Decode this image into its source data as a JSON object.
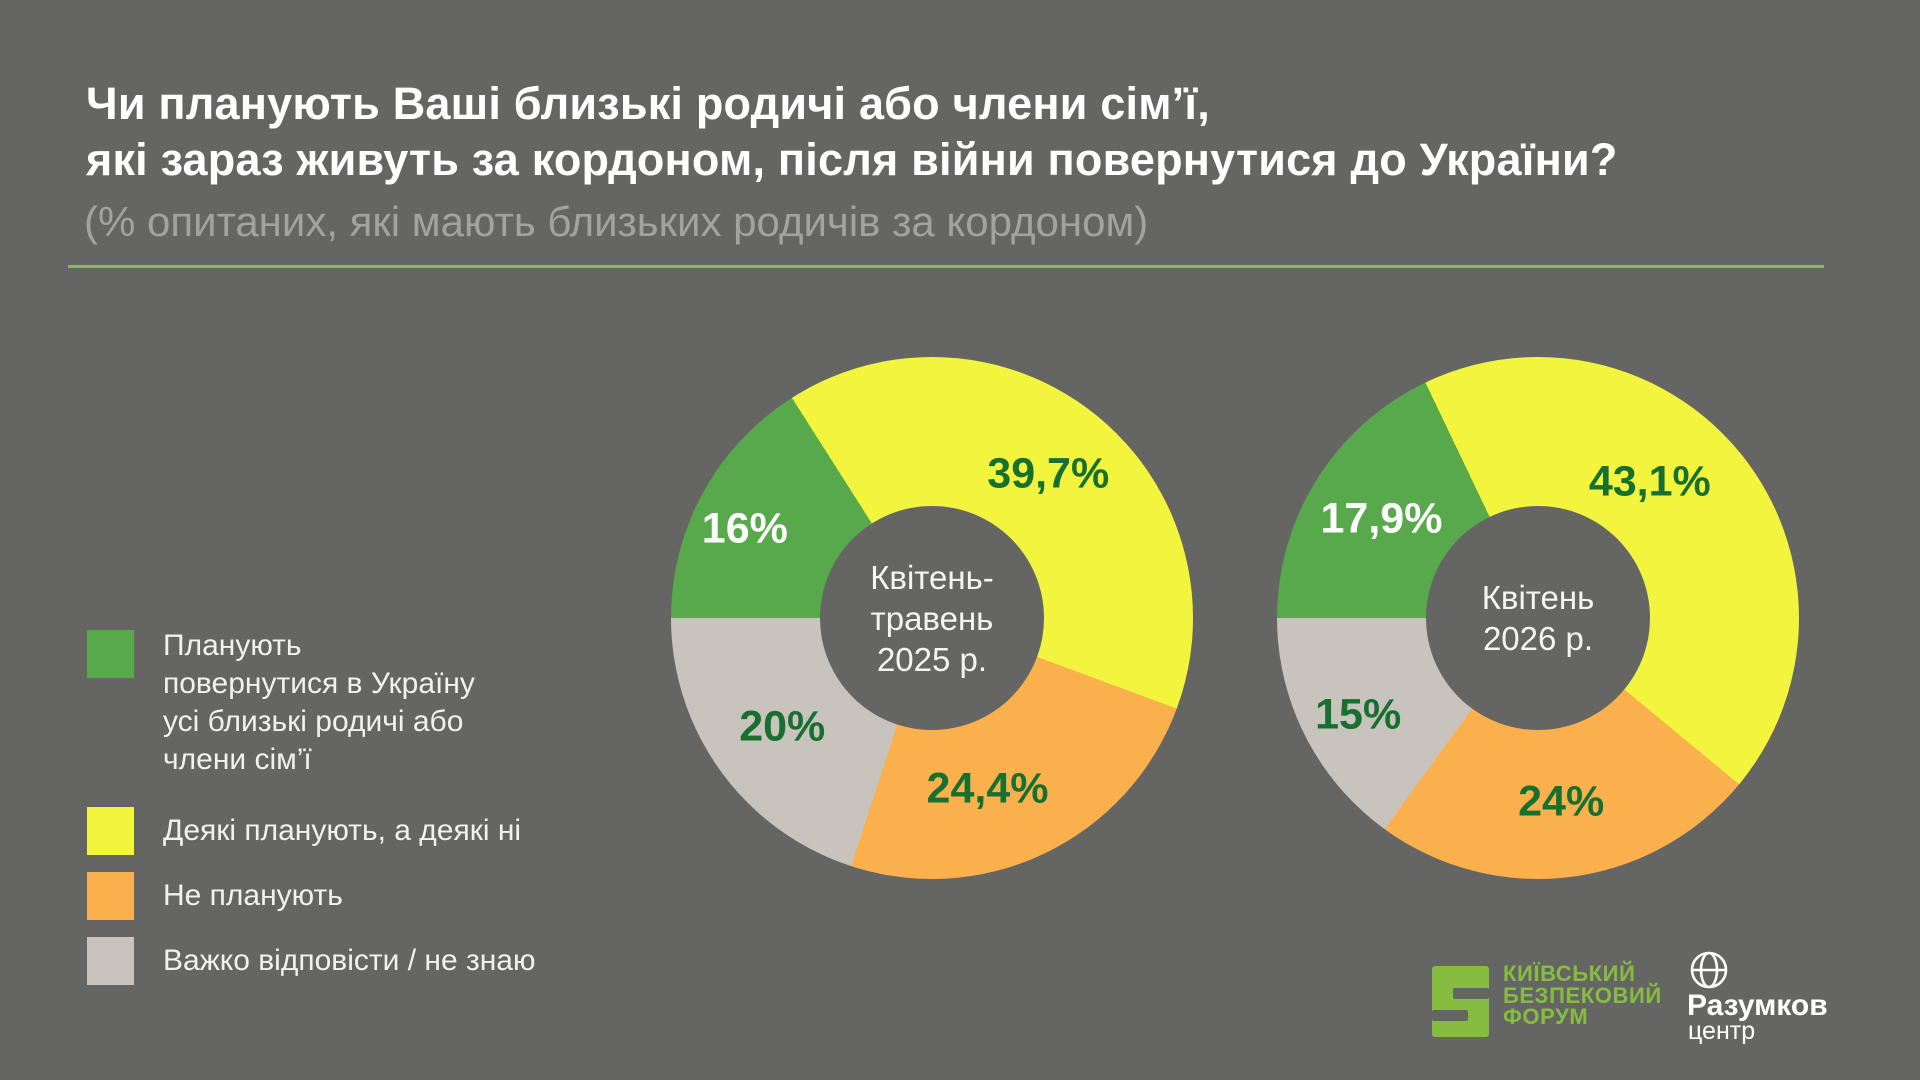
{
  "header": {
    "title_line1": "Чи планують Ваші близькі родичі або члени сім’ї,",
    "title_line2": "які зараз живуть за кордоном, після війни повернутися до України?",
    "subtitle": "(% опитаних, які мають близьких родичів за кордоном)"
  },
  "colors": {
    "background": "#656564",
    "divider": "#8cb94e",
    "green": "#58a94b",
    "yellow": "#f2f43d",
    "orange": "#f9b04d",
    "gray": "#c9c3bd",
    "dark_green_label": "#17702f",
    "white_label": "#ffffff",
    "kbf_green": "#86bd40"
  },
  "chart_data": {
    "type": "pie",
    "subtype": "donut",
    "direction": "clockwise",
    "start_angle_deg_from_top": 270,
    "legend_position": "left",
    "categories": [
      "Планують повернутися в Україну усі близькі родичі або члени сім’ї",
      "Деякі планують, а деякі ні",
      "Не планують",
      "Важко відповісти / не знаю"
    ],
    "slice_colors": [
      "#58a94b",
      "#f2f43d",
      "#f9b04d",
      "#c9c3bd"
    ],
    "label_text_colors": [
      "#ffffff",
      "#17702f",
      "#17702f",
      "#17702f"
    ],
    "charts": [
      {
        "name": "donut-2025",
        "center_label": "Квітень-\nтравень\n2025 р.",
        "values": [
          16,
          39.7,
          24.4,
          20
        ],
        "labels": [
          "16%",
          "39,7%",
          "24,4%",
          "20%"
        ]
      },
      {
        "name": "donut-2026",
        "center_label": "Квітень\n2026 р.",
        "values": [
          17.9,
          43.1,
          24,
          15
        ],
        "labels": [
          "17,9%",
          "43,1%",
          "24%",
          "15%"
        ]
      }
    ]
  },
  "legend": {
    "items": [
      {
        "label": "Планують\nповернутися в Україну\nусі близькі родичі або\nчлени сім’ї",
        "color": "#58a94b"
      },
      {
        "label": "Деякі планують, а деякі ні",
        "color": "#f2f43d"
      },
      {
        "label": "Не планують",
        "color": "#f9b04d"
      },
      {
        "label": "Важко відповісти / не знаю",
        "color": "#c9c3bd"
      }
    ]
  },
  "footer": {
    "kbf_lines": "Київський\nбезпековий\nфорум",
    "razumkov_name": "Разумков",
    "razumkov_sub": "центр"
  }
}
